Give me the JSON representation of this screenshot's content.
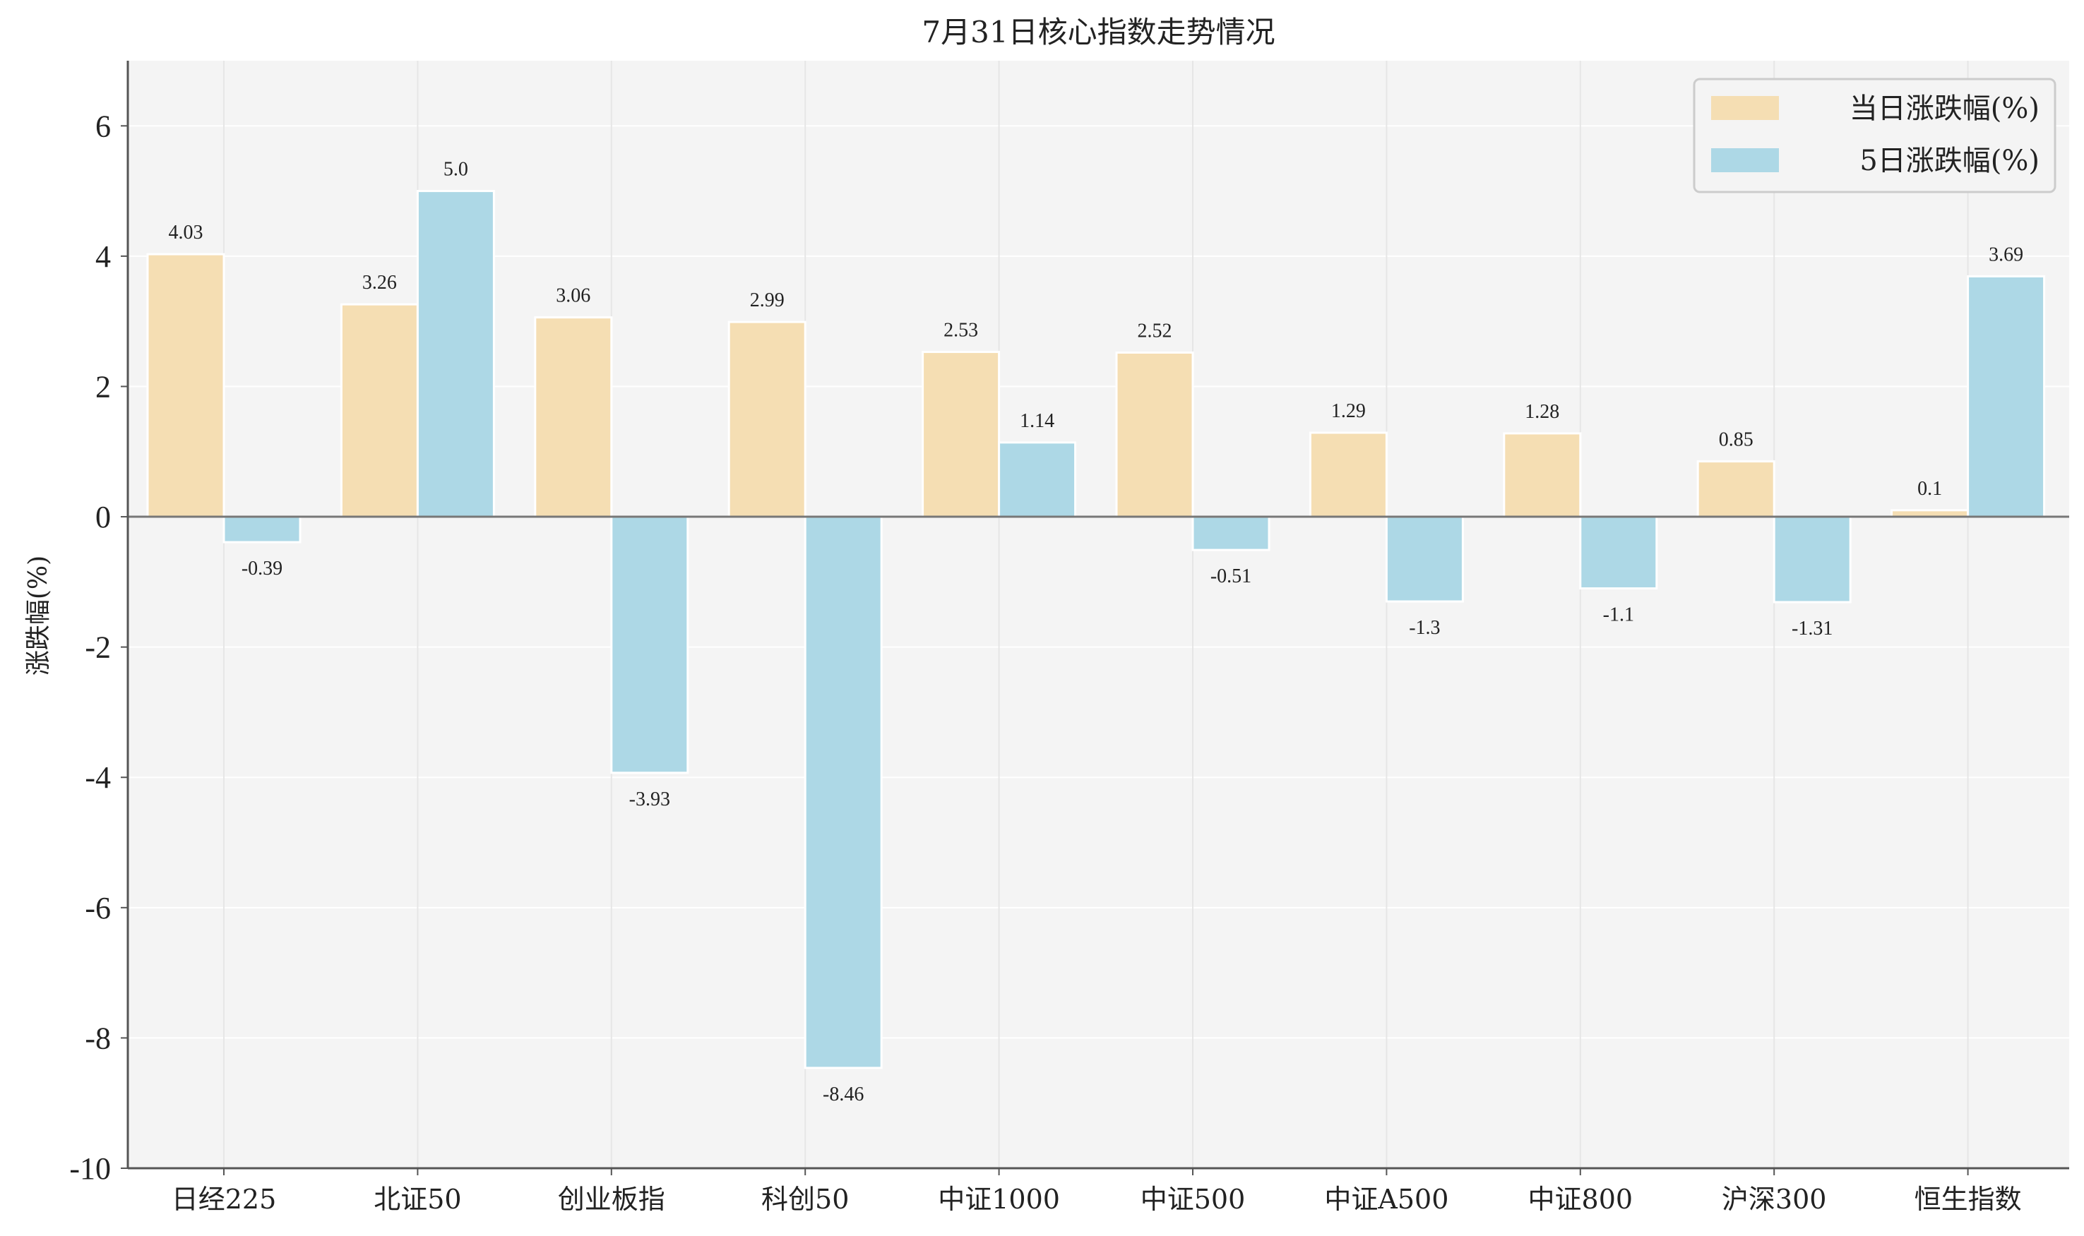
{
  "chart_data": {
    "type": "bar",
    "title": "7月31日核心指数走势情况",
    "ylabel": "涨跌幅(%)",
    "xlabel": "",
    "ylim": [
      -10,
      7
    ],
    "yticks": [
      6,
      4,
      2,
      0,
      -2,
      -4,
      -6,
      -8,
      -10
    ],
    "grid": true,
    "legend_position": "top-right",
    "categories": [
      "日经225",
      "北证50",
      "创业板指",
      "科创50",
      "中证1000",
      "中证500",
      "中证A500",
      "中证800",
      "沪深300",
      "恒生指数"
    ],
    "series": [
      {
        "name": "当日涨跌幅(%)",
        "color": "#F5DEB3",
        "values": [
          4.03,
          3.26,
          3.06,
          2.99,
          2.53,
          2.52,
          1.29,
          1.28,
          0.85,
          0.1
        ],
        "labels": [
          "4.03",
          "3.26",
          "3.06",
          "2.99",
          "2.53",
          "2.52",
          "1.29",
          "1.28",
          "0.85",
          "0.1"
        ]
      },
      {
        "name": "5日涨跌幅(%)",
        "color": "#ADD8E6",
        "values": [
          -0.39,
          5.0,
          -3.93,
          -8.46,
          1.14,
          -0.51,
          -1.3,
          -1.1,
          -1.31,
          3.69
        ],
        "labels": [
          "-0.39",
          "5.0",
          "-3.93",
          "-8.46",
          "1.14",
          "-0.51",
          "-1.3",
          "-1.1",
          "-1.31",
          "3.69"
        ]
      }
    ],
    "colors": {
      "plot_background": "#F4F4F4",
      "grid": "#FFFFFF",
      "axis": "#555555"
    }
  }
}
